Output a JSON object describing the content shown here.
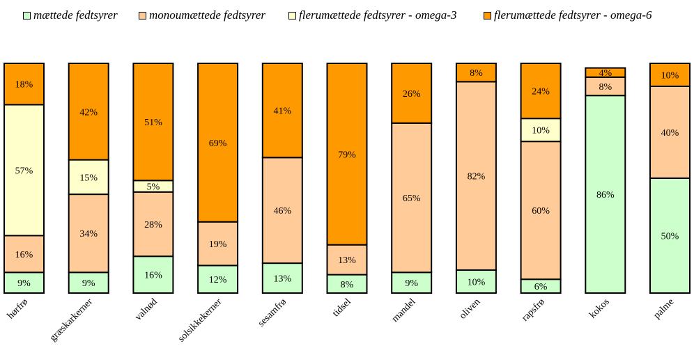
{
  "chart_data": {
    "type": "bar",
    "stacked": true,
    "categories": [
      "hørfrø",
      "græskarkerner",
      "valnød",
      "solsikkekerner",
      "sesamfrø",
      "tidsel",
      "mandel",
      "oliven",
      "rapsfrø",
      "kokos",
      "palme"
    ],
    "series": [
      {
        "name": "mættede fedtsyrer",
        "color": "#ccffcc",
        "values": [
          9,
          9,
          16,
          12,
          13,
          8,
          9,
          10,
          6,
          86,
          50
        ],
        "labels": [
          "9%",
          "9%",
          "16%",
          "12%",
          "13%",
          "8%",
          "9%",
          "10%",
          "6%",
          "86%",
          "50%"
        ]
      },
      {
        "name": "monoumættede fedtsyrer",
        "color": "#ffcc99",
        "values": [
          16,
          34,
          28,
          19,
          46,
          13,
          65,
          82,
          60,
          8,
          40
        ],
        "labels": [
          "16%",
          "34%",
          "28%",
          "19%",
          "46%",
          "13%",
          "65%",
          "82%",
          "60%",
          "8%",
          "40%"
        ]
      },
      {
        "name": "flerumættede fedtsyrer - omega-3",
        "color": "#ffffcc",
        "values": [
          57,
          15,
          5,
          0,
          0,
          0,
          0,
          0,
          10,
          0,
          0
        ],
        "labels": [
          "57%",
          "15%",
          "5%",
          "",
          "",
          "",
          "",
          "",
          "10%",
          "",
          ""
        ]
      },
      {
        "name": "flerumættede fedtsyrer - omega-6",
        "color": "#ff9900",
        "values": [
          18,
          42,
          51,
          69,
          41,
          79,
          26,
          8,
          24,
          4,
          10
        ],
        "labels": [
          "18%",
          "42%",
          "51%",
          "69%",
          "41%",
          "79%",
          "26%",
          "8%",
          "24%",
          "4%",
          "10%"
        ]
      }
    ],
    "ylim": [
      0,
      100
    ],
    "grid": false,
    "legend": "top"
  }
}
